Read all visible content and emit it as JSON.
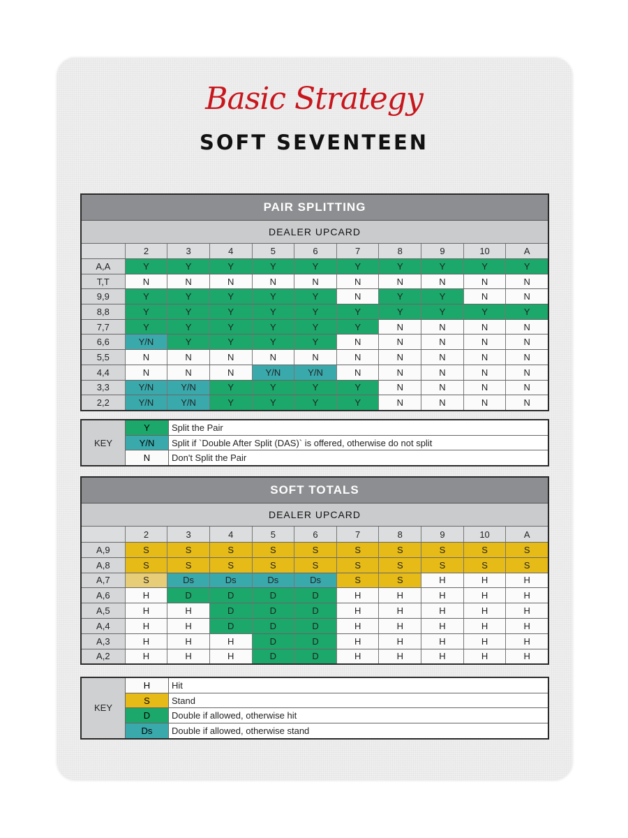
{
  "title": {
    "script": "Basic Strategy",
    "subtitle": "SOFT SEVENTEEN"
  },
  "colors": {
    "green": "#1ba86a",
    "teal": "#3aa9ac",
    "yellow": "#e6bb17",
    "red": "#c8161d",
    "header_gray": "#8d8e91"
  },
  "pair_splitting": {
    "title": "PAIR SPLITTING",
    "dealer_label": "DEALER UPCARD",
    "columns": [
      "2",
      "3",
      "4",
      "5",
      "6",
      "7",
      "8",
      "9",
      "10",
      "A"
    ],
    "rows": [
      {
        "label": "A,A",
        "cells": [
          "Y",
          "Y",
          "Y",
          "Y",
          "Y",
          "Y",
          "Y",
          "Y",
          "Y",
          "Y"
        ]
      },
      {
        "label": "T,T",
        "cells": [
          "N",
          "N",
          "N",
          "N",
          "N",
          "N",
          "N",
          "N",
          "N",
          "N"
        ]
      },
      {
        "label": "9,9",
        "cells": [
          "Y",
          "Y",
          "Y",
          "Y",
          "Y",
          "N",
          "Y",
          "Y",
          "N",
          "N"
        ]
      },
      {
        "label": "8,8",
        "cells": [
          "Y",
          "Y",
          "Y",
          "Y",
          "Y",
          "Y",
          "Y",
          "Y",
          "Y",
          "Y"
        ]
      },
      {
        "label": "7,7",
        "cells": [
          "Y",
          "Y",
          "Y",
          "Y",
          "Y",
          "Y",
          "N",
          "N",
          "N",
          "N"
        ]
      },
      {
        "label": "6,6",
        "cells": [
          "Y/N",
          "Y",
          "Y",
          "Y",
          "Y",
          "N",
          "N",
          "N",
          "N",
          "N"
        ]
      },
      {
        "label": "5,5",
        "cells": [
          "N",
          "N",
          "N",
          "N",
          "N",
          "N",
          "N",
          "N",
          "N",
          "N"
        ]
      },
      {
        "label": "4,4",
        "cells": [
          "N",
          "N",
          "N",
          "Y/N",
          "Y/N",
          "N",
          "N",
          "N",
          "N",
          "N"
        ]
      },
      {
        "label": "3,3",
        "cells": [
          "Y/N",
          "Y/N",
          "Y",
          "Y",
          "Y",
          "Y",
          "N",
          "N",
          "N",
          "N"
        ]
      },
      {
        "label": "2,2",
        "cells": [
          "Y/N",
          "Y/N",
          "Y",
          "Y",
          "Y",
          "Y",
          "N",
          "N",
          "N",
          "N"
        ]
      }
    ],
    "key": {
      "label": "KEY",
      "items": [
        {
          "code": "Y",
          "desc": "Split the Pair"
        },
        {
          "code": "Y/N",
          "desc": "Split if `Double After Split (DAS)` is offered, otherwise do not split"
        },
        {
          "code": "N",
          "desc": "Don't Split the Pair"
        }
      ]
    }
  },
  "soft_totals": {
    "title": "SOFT TOTALS",
    "dealer_label": "DEALER UPCARD",
    "columns": [
      "2",
      "3",
      "4",
      "5",
      "6",
      "7",
      "8",
      "9",
      "10",
      "A"
    ],
    "rows": [
      {
        "label": "A,9",
        "cells": [
          "S",
          "S",
          "S",
          "S",
          "S",
          "S",
          "S",
          "S",
          "S",
          "S"
        ]
      },
      {
        "label": "A,8",
        "cells": [
          "S",
          "S",
          "S",
          "S",
          "S",
          "S",
          "S",
          "S",
          "S",
          "S"
        ]
      },
      {
        "label": "A,7",
        "cells": [
          "S",
          "Ds",
          "Ds",
          "Ds",
          "Ds",
          "S",
          "S",
          "H",
          "H",
          "H"
        ]
      },
      {
        "label": "A,6",
        "cells": [
          "H",
          "D",
          "D",
          "D",
          "D",
          "H",
          "H",
          "H",
          "H",
          "H"
        ]
      },
      {
        "label": "A,5",
        "cells": [
          "H",
          "H",
          "D",
          "D",
          "D",
          "H",
          "H",
          "H",
          "H",
          "H"
        ]
      },
      {
        "label": "A,4",
        "cells": [
          "H",
          "H",
          "D",
          "D",
          "D",
          "H",
          "H",
          "H",
          "H",
          "H"
        ]
      },
      {
        "label": "A,3",
        "cells": [
          "H",
          "H",
          "H",
          "D",
          "D",
          "H",
          "H",
          "H",
          "H",
          "H"
        ]
      },
      {
        "label": "A,2",
        "cells": [
          "H",
          "H",
          "H",
          "D",
          "D",
          "H",
          "H",
          "H",
          "H",
          "H"
        ]
      }
    ],
    "key": {
      "label": "KEY",
      "items": [
        {
          "code": "H",
          "desc": "Hit"
        },
        {
          "code": "S",
          "desc": "Stand"
        },
        {
          "code": "D",
          "desc": "Double if allowed, otherwise hit"
        },
        {
          "code": "Ds",
          "desc": "Double if allowed, otherwise stand"
        }
      ]
    }
  }
}
